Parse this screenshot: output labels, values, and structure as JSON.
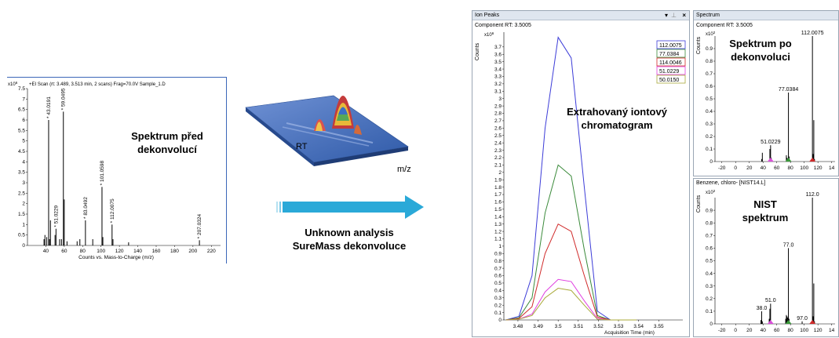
{
  "annotations": {
    "before": [
      "Spektrum před",
      "dekonvolucí"
    ],
    "rt": "RT",
    "mz": "m/z",
    "arrow_caption": [
      "Unknown analysis",
      "SureMass dekonvoluce"
    ],
    "eic": [
      "Extrahovaný iontový",
      "chromatogram"
    ],
    "after": [
      "Spektrum po",
      "dekonvoluci"
    ],
    "nist": [
      "NIST",
      "spektrum"
    ]
  },
  "colors": {
    "arrow": "#2aa9d8",
    "frame_blue": "#3b66b8",
    "surface": "#4a74c4"
  },
  "chart_data": [
    {
      "id": "scan",
      "type": "bar",
      "title": "+EI Scan (rt: 3.489, 3.513 min, 2 scans) Frag=70.0V Sample_1.D",
      "xlabel": "Counts vs. Mass-to-Charge (m/z)",
      "multiplier": "x10",
      "multiplier_exp": "6",
      "xlim": [
        20,
        230
      ],
      "ylim": [
        0,
        7.5
      ],
      "xticks": [
        40,
        60,
        80,
        100,
        120,
        140,
        160,
        180,
        200,
        220
      ],
      "yticks": [
        "7.5",
        "7",
        "6.5",
        "6",
        "5.5",
        "5",
        "4.5",
        "4",
        "3.5",
        "3",
        "2.5",
        "2",
        "1.5",
        "1",
        "0.5",
        "0"
      ],
      "peaks": [
        [
          38,
          0.3
        ],
        [
          39,
          0.5
        ],
        [
          41,
          0.4
        ],
        [
          43.0191,
          6.0
        ],
        [
          44,
          0.3
        ],
        [
          45,
          1.2
        ],
        [
          50,
          0.5
        ],
        [
          51.0229,
          0.8
        ],
        [
          55,
          0.3
        ],
        [
          57,
          0.3
        ],
        [
          59.0495,
          6.4
        ],
        [
          60,
          2.2
        ],
        [
          63,
          0.2
        ],
        [
          74,
          0.2
        ],
        [
          77,
          0.3
        ],
        [
          83.0492,
          1.2
        ],
        [
          91,
          0.3
        ],
        [
          101.0598,
          2.8
        ],
        [
          102,
          0.4
        ],
        [
          112.0075,
          1.0
        ],
        [
          113,
          0.3
        ],
        [
          130,
          0.15
        ],
        [
          207.0324,
          0.25
        ]
      ],
      "labels": [
        {
          "x": 43.0191,
          "y": 6.0,
          "text": "43.0191"
        },
        {
          "x": 59.0495,
          "y": 6.4,
          "text": "59.0495"
        },
        {
          "x": 51.0229,
          "y": 0.8,
          "text": "51.0229"
        },
        {
          "x": 83.0492,
          "y": 1.2,
          "text": "83.0492"
        },
        {
          "x": 101.0598,
          "y": 2.8,
          "text": "101.0598"
        },
        {
          "x": 112.0075,
          "y": 1.0,
          "text": "112.0075"
        },
        {
          "x": 207.0324,
          "y": 0.25,
          "text": "207.0324"
        }
      ]
    },
    {
      "id": "eic",
      "type": "line",
      "pane_title": "Ion Peaks",
      "subtitle": "Component RT: 3.5005",
      "ylabel": "Counts",
      "xlabel": "Acquisition Time (min)",
      "multiplier": "x10",
      "multiplier_exp": "6",
      "xlim": [
        3.473,
        3.562
      ],
      "ylim": [
        0,
        3.9
      ],
      "xticks": [
        "3.48",
        "3.49",
        "3.5",
        "3.51",
        "3.52",
        "3.53",
        "3.54",
        "3.55"
      ],
      "yticks": [
        "3.7",
        "3.6",
        "3.5",
        "3.4",
        "3.3",
        "3.2",
        "3.1",
        "3",
        "2.9",
        "2.8",
        "2.7",
        "2.6",
        "2.5",
        "2.4",
        "2.3",
        "2.2",
        "2.1",
        "2",
        "1.9",
        "1.8",
        "1.7",
        "1.6",
        "1.5",
        "1.4",
        "1.3",
        "1.2",
        "1.1",
        "1",
        "0.9",
        "0.8",
        "0.7",
        "0.6",
        "0.5",
        "0.4",
        "0.3",
        "0.2",
        "0.1",
        "0"
      ],
      "x": [
        3.474,
        3.4805,
        3.487,
        3.4935,
        3.5,
        3.5065,
        3.513,
        3.5195,
        3.526,
        3.5325,
        3.539
      ],
      "series": [
        {
          "name": "112.0075",
          "color": "#3c3cd8",
          "values": [
            0.0,
            0.05,
            0.6,
            2.6,
            3.83,
            3.55,
            1.8,
            0.12,
            0.0,
            0.0,
            0.0
          ]
        },
        {
          "name": "77.0384",
          "color": "#3a8a3a",
          "values": [
            0.0,
            0.03,
            0.3,
            1.45,
            2.1,
            1.95,
            0.95,
            0.06,
            0.0,
            0.0,
            0.0
          ]
        },
        {
          "name": "114.0046",
          "color": "#d02a2a",
          "values": [
            0.0,
            0.02,
            0.18,
            0.9,
            1.3,
            1.2,
            0.6,
            0.04,
            0.0,
            0.0,
            0.0
          ]
        },
        {
          "name": "51.0229",
          "color": "#e040e0",
          "values": [
            0.0,
            0.01,
            0.08,
            0.38,
            0.55,
            0.52,
            0.26,
            0.02,
            0.0,
            0.0,
            0.0
          ]
        },
        {
          "name": "50.0150",
          "color": "#a9a93a",
          "values": [
            0.0,
            0.01,
            0.06,
            0.3,
            0.43,
            0.4,
            0.2,
            0.01,
            0.0,
            0.0,
            0.0
          ]
        }
      ]
    },
    {
      "id": "deconv",
      "type": "bar",
      "pane_title": "Spectrum",
      "subtitle": "Component RT: 3.5005",
      "ylabel": "Counts",
      "multiplier": "x10",
      "multiplier_exp": "2",
      "xlim": [
        -30,
        145
      ],
      "ylim": [
        0,
        1.0
      ],
      "xticks": [
        "-20",
        "0",
        "20",
        "40",
        "60",
        "80",
        "100",
        "120",
        "14"
      ],
      "yticks": [
        "0.9",
        "0.8",
        "0.7",
        "0.6",
        "0.5",
        "0.4",
        "0.3",
        "0.2",
        "0.1",
        "0"
      ],
      "peaks": [
        [
          38,
          0.02
        ],
        [
          39,
          0.07
        ],
        [
          50,
          0.1
        ],
        [
          51.0229,
          0.13
        ],
        [
          52,
          0.03
        ],
        [
          74,
          0.05
        ],
        [
          75,
          0.03
        ],
        [
          76,
          0.02
        ],
        [
          77.0384,
          0.55
        ],
        [
          78,
          0.04
        ],
        [
          112.0075,
          1.0
        ],
        [
          113,
          0.06
        ],
        [
          114,
          0.33
        ],
        [
          115,
          0.02
        ]
      ],
      "labels": [
        {
          "x": 112.0075,
          "y": 1.0,
          "text": "112.0075"
        },
        {
          "x": 77.0384,
          "y": 0.55,
          "text": "77.0384"
        },
        {
          "x": 51.0229,
          "y": 0.13,
          "text": "51.0229"
        }
      ],
      "markers": [
        {
          "x": 51,
          "color": "#d94fd9"
        },
        {
          "x": 77,
          "color": "#3a9a3a"
        },
        {
          "x": 112,
          "color": "#d02a2a"
        }
      ]
    },
    {
      "id": "nist",
      "type": "bar",
      "pane_title": "Benzene, chloro- [NIST14.L]",
      "ylabel": "Counts",
      "multiplier": "x10",
      "multiplier_exp": "2",
      "xlim": [
        -30,
        145
      ],
      "ylim": [
        0,
        1.0
      ],
      "xticks": [
        "-20",
        "0",
        "20",
        "40",
        "60",
        "80",
        "100",
        "120",
        "14"
      ],
      "yticks": [
        "0.9",
        "0.8",
        "0.7",
        "0.6",
        "0.5",
        "0.4",
        "0.3",
        "0.2",
        "0.1",
        "0"
      ],
      "peaks": [
        [
          37,
          0.03
        ],
        [
          38,
          0.1
        ],
        [
          39,
          0.02
        ],
        [
          49,
          0.04
        ],
        [
          50,
          0.12
        ],
        [
          51,
          0.16
        ],
        [
          73,
          0.04
        ],
        [
          74,
          0.07
        ],
        [
          75,
          0.06
        ],
        [
          76,
          0.05
        ],
        [
          77,
          0.6
        ],
        [
          78,
          0.04
        ],
        [
          97,
          0.02
        ],
        [
          112,
          1.0
        ],
        [
          113,
          0.06
        ],
        [
          114,
          0.32
        ],
        [
          115,
          0.02
        ]
      ],
      "labels": [
        {
          "x": 112,
          "y": 1.0,
          "text": "112.0"
        },
        {
          "x": 77,
          "y": 0.6,
          "text": "77.0"
        },
        {
          "x": 51,
          "y": 0.16,
          "text": "51.0"
        },
        {
          "x": 38,
          "y": 0.1,
          "text": "38.0"
        },
        {
          "x": 97,
          "y": 0.02,
          "text": "97.0"
        }
      ],
      "markers": [
        {
          "x": 51,
          "color": "#d94fd9"
        },
        {
          "x": 77,
          "color": "#3a9a3a"
        },
        {
          "x": 112,
          "color": "#d02a2a"
        }
      ]
    }
  ]
}
